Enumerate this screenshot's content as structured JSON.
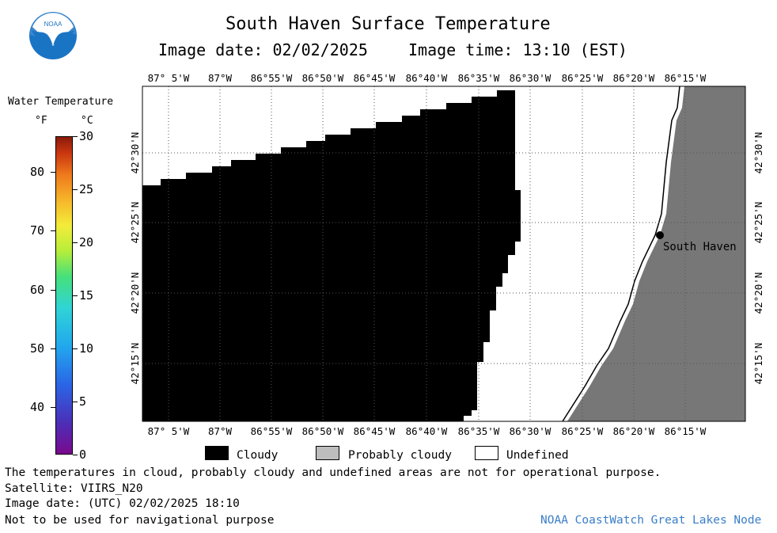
{
  "header": {
    "title": "South Haven Surface Temperature",
    "image_date": "Image date: 02/02/2025",
    "image_time": "Image time: 13:10 (EST)"
  },
  "logo": {
    "text": "NOAA",
    "icon": "noaa-logo-icon"
  },
  "legend": {
    "title": "Water Temperature",
    "unit_f": "°F",
    "unit_c": "°C",
    "fahrenheit_ticks": [
      "40",
      "50",
      "60",
      "70",
      "80"
    ],
    "celsius_ticks": [
      "0",
      "5",
      "10",
      "15",
      "20",
      "25",
      "30"
    ]
  },
  "map": {
    "longitude_labels": [
      "87° 5'W",
      "87°W",
      "86°55'W",
      "86°50'W",
      "86°45'W",
      "86°40'W",
      "86°35'W",
      "86°30'W",
      "86°25'W",
      "86°20'W",
      "86°15'W"
    ],
    "latitude_labels": [
      "42°30'N",
      "42°25'N",
      "42°20'N",
      "42°15'N"
    ],
    "location_label": "South Haven",
    "colors": {
      "cloudy": "#000000",
      "probably_cloudy": "#777777",
      "land": "#777777",
      "undefined": "#ffffff"
    }
  },
  "key": {
    "cloudy": "Cloudy",
    "probably_cloudy": "Probably cloudy",
    "undefined": "Undefined"
  },
  "footer": {
    "disclaimer": "The temperatures in cloud, probably cloudy and undefined areas are not for operational purpose.",
    "satellite": "Satellite: VIIRS_N20",
    "utc_date": "Image date: (UTC) 02/02/2025  18:10",
    "navigation": "Not to be used for navigational purpose",
    "credit": "NOAA CoastWatch Great Lakes Node"
  }
}
